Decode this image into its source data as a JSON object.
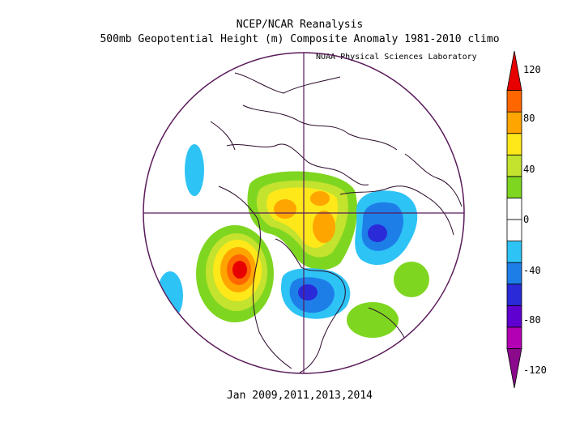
{
  "header": {
    "title": "NCEP/NCAR Reanalysis",
    "subtitle": "500mb Geopotential Height (m) Composite Anomaly 1981-2010 climo",
    "credit": "NOAA Physical Sciences Laboratory"
  },
  "footer": {
    "caption": "Jan 2009,2011,2013,2014"
  },
  "colorbar": {
    "labels": [
      "120",
      "80",
      "40",
      "0",
      "-40",
      "-80",
      "-120"
    ],
    "colors": [
      "#8b0a8c",
      "#b400b4",
      "#6000d0",
      "#2a2ad8",
      "#1e7ee8",
      "#2ec3f5",
      "#ffffff",
      "#ffffff",
      "#7fd620",
      "#c3e32e",
      "#ffe81a",
      "#ffa500",
      "#ff6600",
      "#e80000"
    ]
  },
  "map": {
    "projection": "north-polar-stereographic",
    "colors": {
      "outline": "#5a1a5a",
      "coast": "#2a0a2a",
      "neg40": "#2ec3f5",
      "neg60": "#1e7ee8",
      "neg80": "#2a2ad8",
      "neg100": "#6000d0",
      "pos20": "#7fd620",
      "pos40": "#c3e32e",
      "pos60": "#ffe81a",
      "pos80": "#ffa500",
      "pos100": "#ff6600",
      "pos120": "#e80000"
    }
  }
}
